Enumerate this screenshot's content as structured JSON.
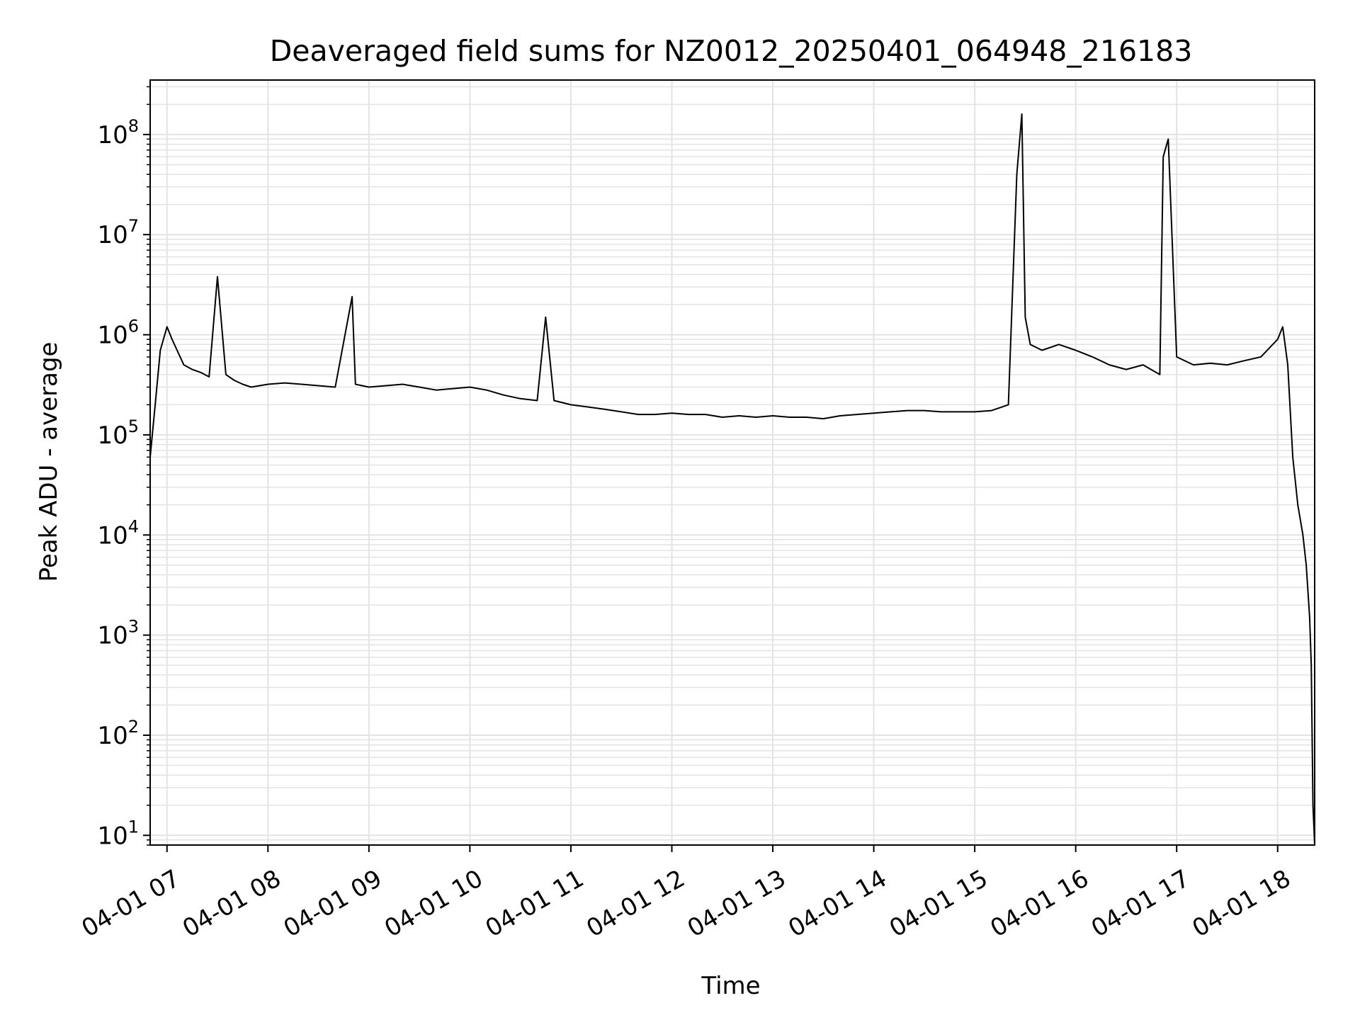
{
  "chart_data": {
    "type": "line",
    "title": "Deaveraged field sums for NZ0012_20250401_064948_216183",
    "xlabel": "Time",
    "ylabel": "Peak ADU - average",
    "y_scale": "log",
    "grid": true,
    "x_range": [
      "04-01 06:50",
      "04-01 18:22"
    ],
    "ylim": [
      8,
      350000000
    ],
    "x_ticks": [
      "04-01 07",
      "04-01 08",
      "04-01 09",
      "04-01 10",
      "04-01 11",
      "04-01 12",
      "04-01 13",
      "04-01 14",
      "04-01 15",
      "04-01 16",
      "04-01 17",
      "04-01 18"
    ],
    "y_ticks": [
      {
        "base": "10",
        "exp": "1",
        "value": 10
      },
      {
        "base": "10",
        "exp": "2",
        "value": 100
      },
      {
        "base": "10",
        "exp": "3",
        "value": 1000
      },
      {
        "base": "10",
        "exp": "4",
        "value": 10000
      },
      {
        "base": "10",
        "exp": "5",
        "value": 100000
      },
      {
        "base": "10",
        "exp": "6",
        "value": 1000000
      },
      {
        "base": "10",
        "exp": "7",
        "value": 10000000
      },
      {
        "base": "10",
        "exp": "8",
        "value": 100000000
      }
    ],
    "line_color": "#000000",
    "grid_color": "#e3e3e3",
    "series": [
      {
        "x": [
          "06:50",
          "06:53",
          "06:56",
          "07:00",
          "07:03",
          "07:06",
          "07:10",
          "07:15",
          "07:20",
          "07:25",
          "07:30",
          "07:35",
          "07:40",
          "07:45",
          "07:50",
          "08:00",
          "08:10",
          "08:20",
          "08:30",
          "08:40",
          "08:50",
          "08:52",
          "09:00",
          "09:10",
          "09:20",
          "09:30",
          "09:40",
          "09:50",
          "10:00",
          "10:10",
          "10:20",
          "10:30",
          "10:40",
          "10:45",
          "10:50",
          "11:00",
          "11:10",
          "11:20",
          "11:30",
          "11:40",
          "11:50",
          "12:00",
          "12:10",
          "12:20",
          "12:30",
          "12:40",
          "12:50",
          "13:00",
          "13:10",
          "13:20",
          "13:30",
          "13:40",
          "13:50",
          "14:00",
          "14:10",
          "14:20",
          "14:30",
          "14:40",
          "14:50",
          "15:00",
          "15:10",
          "15:20",
          "15:25",
          "15:28",
          "15:30",
          "15:33",
          "15:40",
          "15:50",
          "16:00",
          "16:10",
          "16:20",
          "16:30",
          "16:40",
          "16:50",
          "16:52",
          "16:55",
          "17:00",
          "17:10",
          "17:20",
          "17:30",
          "17:40",
          "17:50",
          "18:00",
          "18:03",
          "18:06",
          "18:09",
          "18:12",
          "18:15",
          "18:17",
          "18:19",
          "18:20",
          "18:21",
          "18:22"
        ],
        "y": [
          60000,
          200000,
          700000,
          1200000,
          900000,
          700000,
          500000,
          450000,
          420000,
          380000,
          3800000,
          400000,
          350000,
          320000,
          300000,
          320000,
          330000,
          320000,
          310000,
          300000,
          2400000,
          320000,
          300000,
          310000,
          320000,
          300000,
          280000,
          290000,
          300000,
          280000,
          250000,
          230000,
          220000,
          1500000,
          220000,
          200000,
          190000,
          180000,
          170000,
          160000,
          160000,
          165000,
          160000,
          160000,
          150000,
          155000,
          150000,
          155000,
          150000,
          150000,
          145000,
          155000,
          160000,
          165000,
          170000,
          175000,
          175000,
          170000,
          170000,
          170000,
          175000,
          200000,
          40000000,
          160000000,
          1500000,
          800000,
          700000,
          800000,
          700000,
          600000,
          500000,
          450000,
          500000,
          400000,
          60000000,
          90000000,
          600000,
          500000,
          520000,
          500000,
          550000,
          600000,
          900000,
          1200000,
          500000,
          60000,
          20000,
          10000,
          5000,
          1500,
          500,
          20,
          8
        ]
      }
    ]
  }
}
